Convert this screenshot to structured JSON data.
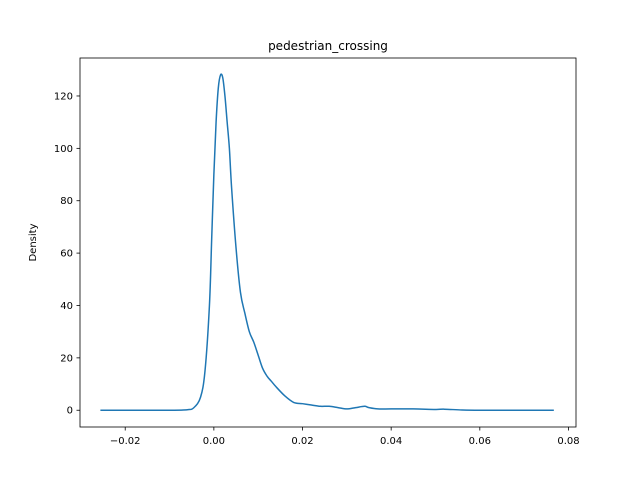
{
  "chart_data": {
    "type": "line",
    "title": "pedestrian_crossing",
    "xlabel": "",
    "ylabel": "Density",
    "xlim": [
      -0.0302,
      0.0817
    ],
    "ylim": [
      -6.4,
      134.5
    ],
    "x_ticks": [
      -0.02,
      0.0,
      0.02,
      0.04,
      0.06,
      0.08
    ],
    "x_tick_labels": [
      "−0.02",
      "0.00",
      "0.02",
      "0.04",
      "0.06",
      "0.08"
    ],
    "y_ticks": [
      0,
      20,
      40,
      60,
      80,
      100,
      120
    ],
    "y_tick_labels": [
      "0",
      "20",
      "40",
      "60",
      "80",
      "100",
      "120"
    ],
    "grid": false,
    "series": [
      {
        "color": "#1f77b4",
        "x": [
          -0.0256,
          -0.02,
          -0.01,
          -0.006,
          -0.0045,
          -0.003,
          -0.002,
          -0.001,
          -0.0005,
          0.0,
          0.0005,
          0.001,
          0.0015,
          0.002,
          0.0025,
          0.003,
          0.0035,
          0.004,
          0.005,
          0.006,
          0.007,
          0.008,
          0.009,
          0.01,
          0.011,
          0.012,
          0.013,
          0.014,
          0.016,
          0.018,
          0.02,
          0.022,
          0.024,
          0.026,
          0.028,
          0.03,
          0.032,
          0.034,
          0.035,
          0.037,
          0.04,
          0.045,
          0.05,
          0.052,
          0.056,
          0.06,
          0.07,
          0.0767
        ],
        "y": [
          0,
          0,
          0,
          0.2,
          1,
          5,
          15,
          40,
          65,
          90,
          110,
          123,
          128,
          127,
          120,
          110,
          100,
          85,
          62,
          45,
          37,
          30,
          26,
          21,
          16,
          13,
          11,
          9,
          5.5,
          3,
          2.5,
          2,
          1.5,
          1.5,
          1,
          0.5,
          1,
          1.5,
          1,
          0.5,
          0.5,
          0.5,
          0.3,
          0.4,
          0.1,
          0,
          0,
          0
        ]
      }
    ]
  }
}
